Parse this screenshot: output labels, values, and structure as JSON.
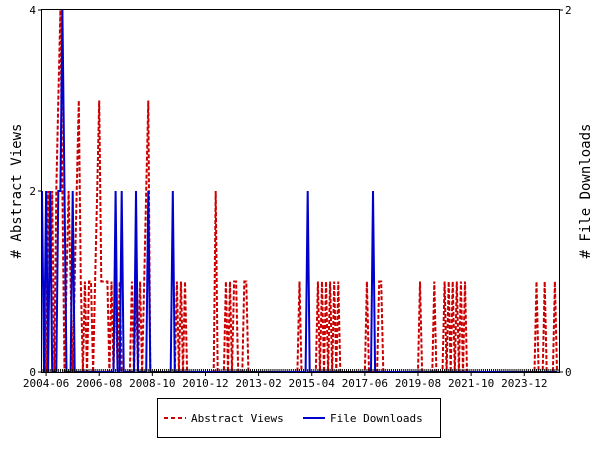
{
  "chart_data": {
    "type": "line",
    "title": "",
    "xlabel": "",
    "ylabel_left": "# Abstract Views",
    "ylabel_right": "# File Downloads",
    "y_left_ticks": [
      "0",
      "2",
      "4"
    ],
    "y_right_ticks": [
      "0",
      "2"
    ],
    "ylim_left": [
      0,
      4
    ],
    "ylim_right": [
      0,
      2
    ],
    "x_range": [
      "2004-04",
      "2025-05"
    ],
    "x_tick_labels": [
      "2004-06",
      "2006-08",
      "2008-10",
      "2010-12",
      "2013-02",
      "2015-04",
      "2017-06",
      "2019-08",
      "2021-10",
      "2023-12"
    ],
    "legend_position": "bottom-center",
    "grid": false,
    "series": [
      {
        "name": "Abstract Views",
        "color": "#cc0000",
        "dash": "dashed",
        "axis": "left",
        "points": [
          [
            "2004-05",
            1
          ],
          [
            "2004-06",
            0
          ],
          [
            "2004-07",
            2
          ],
          [
            "2004-08",
            1
          ],
          [
            "2004-09",
            2
          ],
          [
            "2004-10",
            0
          ],
          [
            "2004-11",
            2
          ],
          [
            "2004-12",
            3
          ],
          [
            "2005-01",
            4
          ],
          [
            "2005-02",
            2
          ],
          [
            "2005-03",
            0
          ],
          [
            "2005-04",
            1
          ],
          [
            "2005-05",
            2
          ],
          [
            "2005-06",
            1
          ],
          [
            "2005-07",
            0
          ],
          [
            "2005-08",
            1
          ],
          [
            "2005-09",
            2
          ],
          [
            "2005-10",
            3
          ],
          [
            "2005-11",
            1
          ],
          [
            "2005-12",
            0
          ],
          [
            "2006-01",
            1
          ],
          [
            "2006-02",
            0
          ],
          [
            "2006-03",
            1
          ],
          [
            "2006-04",
            1
          ],
          [
            "2006-05",
            0
          ],
          [
            "2006-06",
            1
          ],
          [
            "2006-07",
            2
          ],
          [
            "2006-08",
            3
          ],
          [
            "2006-09",
            1
          ],
          [
            "2006-10",
            1
          ],
          [
            "2006-11",
            1
          ],
          [
            "2006-12",
            1
          ],
          [
            "2007-01",
            0
          ],
          [
            "2007-02",
            1
          ],
          [
            "2007-03",
            0
          ],
          [
            "2007-04",
            1
          ],
          [
            "2007-05",
            0
          ],
          [
            "2007-06",
            1
          ],
          [
            "2007-07",
            0
          ],
          [
            "2007-08",
            0
          ],
          [
            "2007-09",
            0
          ],
          [
            "2007-10",
            0
          ],
          [
            "2007-11",
            0
          ],
          [
            "2007-12",
            1
          ],
          [
            "2008-01",
            0
          ],
          [
            "2008-02",
            1
          ],
          [
            "2008-03",
            0
          ],
          [
            "2008-04",
            1
          ],
          [
            "2008-05",
            0
          ],
          [
            "2008-06",
            1
          ],
          [
            "2008-07",
            2
          ],
          [
            "2008-08",
            3
          ],
          [
            "2008-09",
            0
          ],
          [
            "2008-10",
            0
          ],
          [
            "2008-11",
            0
          ],
          [
            "2008-12",
            0
          ],
          [
            "2009-01",
            0
          ],
          [
            "2009-02",
            0
          ],
          [
            "2009-03",
            0
          ],
          [
            "2009-04",
            0
          ],
          [
            "2009-05",
            0
          ],
          [
            "2009-06",
            0
          ],
          [
            "2009-07",
            0
          ],
          [
            "2009-08",
            0
          ],
          [
            "2009-09",
            0
          ],
          [
            "2009-10",
            1
          ],
          [
            "2009-11",
            0
          ],
          [
            "2009-12",
            1
          ],
          [
            "2010-01",
            0
          ],
          [
            "2010-02",
            1
          ],
          [
            "2010-03",
            0
          ],
          [
            "2011-03",
            0
          ],
          [
            "2011-04",
            0
          ],
          [
            "2011-05",
            2
          ],
          [
            "2011-06",
            0
          ],
          [
            "2011-07",
            0
          ],
          [
            "2011-08",
            0
          ],
          [
            "2011-09",
            0
          ],
          [
            "2011-10",
            1
          ],
          [
            "2011-11",
            0
          ],
          [
            "2011-12",
            1
          ],
          [
            "2012-01",
            0
          ],
          [
            "2012-02",
            1
          ],
          [
            "2012-03",
            1
          ],
          [
            "2012-04",
            0
          ],
          [
            "2012-05",
            0
          ],
          [
            "2012-06",
            0
          ],
          [
            "2012-07",
            1
          ],
          [
            "2012-08",
            1
          ],
          [
            "2012-09",
            0
          ],
          [
            "2014-09",
            0
          ],
          [
            "2014-10",
            1
          ],
          [
            "2014-11",
            0
          ],
          [
            "2015-06",
            0
          ],
          [
            "2015-07",
            1
          ],
          [
            "2015-08",
            0
          ],
          [
            "2015-09",
            1
          ],
          [
            "2015-10",
            0
          ],
          [
            "2015-11",
            1
          ],
          [
            "2015-12",
            0
          ],
          [
            "2016-01",
            1
          ],
          [
            "2016-02",
            0
          ],
          [
            "2016-03",
            1
          ],
          [
            "2016-04",
            0
          ],
          [
            "2016-05",
            1
          ],
          [
            "2016-06",
            0
          ],
          [
            "2016-07",
            0
          ],
          [
            "2016-08",
            0
          ],
          [
            "2016-09",
            0
          ],
          [
            "2016-10",
            0
          ],
          [
            "2016-11",
            0
          ],
          [
            "2016-12",
            0
          ],
          [
            "2017-01",
            0
          ],
          [
            "2017-02",
            0
          ],
          [
            "2017-03",
            0
          ],
          [
            "2017-04",
            0
          ],
          [
            "2017-05",
            0
          ],
          [
            "2017-06",
            0
          ],
          [
            "2017-07",
            1
          ],
          [
            "2017-08",
            0
          ],
          [
            "2017-09",
            0
          ],
          [
            "2017-10",
            0
          ],
          [
            "2017-11",
            0
          ],
          [
            "2017-12",
            0
          ],
          [
            "2018-01",
            1
          ],
          [
            "2018-02",
            1
          ],
          [
            "2018-03",
            0
          ],
          [
            "2018-04",
            0
          ],
          [
            "2019-08",
            0
          ],
          [
            "2019-09",
            1
          ],
          [
            "2019-10",
            0
          ],
          [
            "2020-03",
            0
          ],
          [
            "2020-04",
            1
          ],
          [
            "2020-05",
            0
          ],
          [
            "2020-08",
            0
          ],
          [
            "2020-09",
            1
          ],
          [
            "2020-10",
            0
          ],
          [
            "2020-11",
            1
          ],
          [
            "2020-12",
            0
          ],
          [
            "2021-01",
            1
          ],
          [
            "2021-02",
            0
          ],
          [
            "2021-03",
            1
          ],
          [
            "2021-04",
            0
          ],
          [
            "2021-05",
            1
          ],
          [
            "2021-06",
            0
          ],
          [
            "2021-07",
            1
          ],
          [
            "2021-08",
            0
          ],
          [
            "2024-05",
            0
          ],
          [
            "2024-06",
            1
          ],
          [
            "2024-07",
            0
          ],
          [
            "2024-09",
            0
          ],
          [
            "2024-10",
            1
          ],
          [
            "2024-11",
            0
          ],
          [
            "2025-02",
            0
          ],
          [
            "2025-03",
            1
          ],
          [
            "2025-04",
            0
          ]
        ]
      },
      {
        "name": "File Downloads",
        "color": "#0000cc",
        "dash": "solid",
        "axis": "right",
        "points": [
          [
            "2004-04",
            1
          ],
          [
            "2004-05",
            0
          ],
          [
            "2004-06",
            1
          ],
          [
            "2004-07",
            0
          ],
          [
            "2004-08",
            1
          ],
          [
            "2004-09",
            0
          ],
          [
            "2004-10",
            0
          ],
          [
            "2004-11",
            0
          ],
          [
            "2004-12",
            1
          ],
          [
            "2005-01",
            1
          ],
          [
            "2005-02",
            2
          ],
          [
            "2005-03",
            1
          ],
          [
            "2005-04",
            0
          ],
          [
            "2005-05",
            0
          ],
          [
            "2005-06",
            0
          ],
          [
            "2005-07",
            1
          ],
          [
            "2005-08",
            0
          ],
          [
            "2005-09",
            0
          ],
          [
            "2005-10",
            0
          ],
          [
            "2005-11",
            0
          ],
          [
            "2005-12",
            0
          ],
          [
            "2006-01",
            0
          ],
          [
            "2006-02",
            0
          ],
          [
            "2006-03",
            0
          ],
          [
            "2006-04",
            0
          ],
          [
            "2006-05",
            0
          ],
          [
            "2006-06",
            0
          ],
          [
            "2006-07",
            0
          ],
          [
            "2006-08",
            0
          ],
          [
            "2006-09",
            0
          ],
          [
            "2006-10",
            0
          ],
          [
            "2006-11",
            0
          ],
          [
            "2006-12",
            0
          ],
          [
            "2007-01",
            0
          ],
          [
            "2007-02",
            0
          ],
          [
            "2007-03",
            0
          ],
          [
            "2007-04",
            1
          ],
          [
            "2007-05",
            0
          ],
          [
            "2007-06",
            0
          ],
          [
            "2007-07",
            1
          ],
          [
            "2007-08",
            0
          ],
          [
            "2007-09",
            0
          ],
          [
            "2007-10",
            0
          ],
          [
            "2007-11",
            0
          ],
          [
            "2007-12",
            0
          ],
          [
            "2008-01",
            0
          ],
          [
            "2008-02",
            1
          ],
          [
            "2008-03",
            0
          ],
          [
            "2008-04",
            0
          ],
          [
            "2008-05",
            0
          ],
          [
            "2008-06",
            0
          ],
          [
            "2008-07",
            0
          ],
          [
            "2008-08",
            1
          ],
          [
            "2008-09",
            0
          ],
          [
            "2008-10",
            0
          ],
          [
            "2008-11",
            0
          ],
          [
            "2009-06",
            0
          ],
          [
            "2009-07",
            0
          ],
          [
            "2009-08",
            1
          ],
          [
            "2009-09",
            0
          ],
          [
            "2010-01",
            0
          ],
          [
            "2015-01",
            0
          ],
          [
            "2015-02",
            1
          ],
          [
            "2015-03",
            0
          ],
          [
            "2017-09",
            0
          ],
          [
            "2017-10",
            1
          ],
          [
            "2017-11",
            0
          ],
          [
            "2025-04",
            0
          ]
        ]
      }
    ]
  }
}
